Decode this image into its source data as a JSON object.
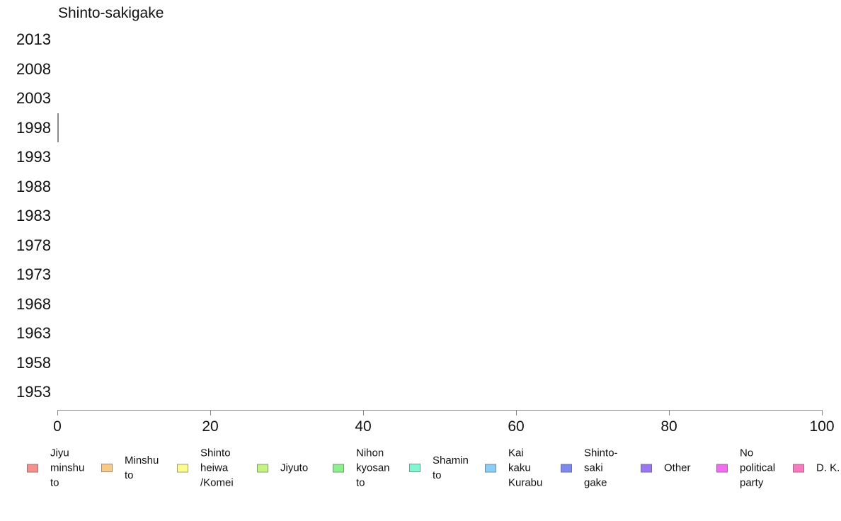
{
  "chart_data": {
    "type": "bar",
    "orientation": "horizontal",
    "title": "Shinto-sakigake",
    "categories": [
      "2013",
      "2008",
      "2003",
      "1998",
      "1993",
      "1988",
      "1983",
      "1978",
      "1973",
      "1968",
      "1963",
      "1958",
      "1953"
    ],
    "values": [
      0,
      0,
      0,
      0.2,
      0,
      0,
      0,
      0,
      0,
      0,
      0,
      0,
      0
    ],
    "xlabel": "",
    "ylabel": "",
    "xlim": [
      0,
      100
    ],
    "x_ticks": [
      "0",
      "20",
      "40",
      "60",
      "80",
      "100"
    ],
    "grid": false,
    "bar_color": "#8a8a8a",
    "axis_color": "#8a8a8a",
    "legend_position": "bottom",
    "legend": [
      {
        "label": "Jiyu\nminshu\nto",
        "color": "#f4908e"
      },
      {
        "label": "Minshu\nto",
        "color": "#f7c98b"
      },
      {
        "label": "Shinto\nheiwa\n/Komei",
        "color": "#fbfb8f"
      },
      {
        "label": "Jiyuto",
        "color": "#c4f381"
      },
      {
        "label": "Nihon\nkyosan\nto",
        "color": "#8fee90"
      },
      {
        "label": "Shamin\nto",
        "color": "#82f5d2"
      },
      {
        "label": "Kai\nkaku\nKurabu",
        "color": "#8bcdf8"
      },
      {
        "label": "Shinto-\nsaki\ngake",
        "color": "#7e88ee"
      },
      {
        "label": "Other",
        "color": "#9778ee"
      },
      {
        "label": "No\npolitical\nparty",
        "color": "#f06df0"
      },
      {
        "label": "D. K.",
        "color": "#fa7ac0"
      }
    ]
  }
}
